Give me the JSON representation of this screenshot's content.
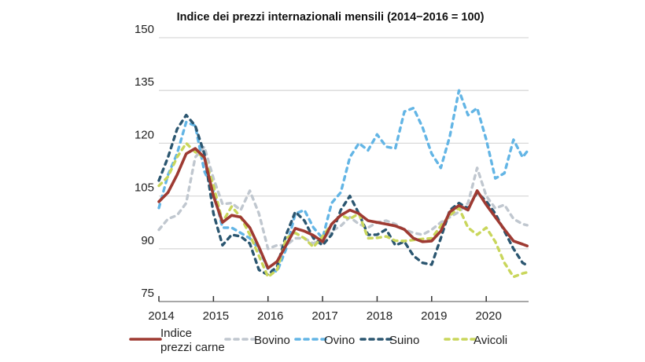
{
  "chart_data": {
    "type": "line",
    "title": "Indice dei prezzi internazionali mensili (2014−2016 = 100)",
    "xlabel": "",
    "ylabel": "",
    "ylim": [
      75,
      150
    ],
    "yticks": [
      75,
      90,
      105,
      120,
      135,
      150
    ],
    "xticks": [
      "2014",
      "2015",
      "2016",
      "2017",
      "2018",
      "2019",
      "2020"
    ],
    "grid": "horizontal",
    "legend_position": "bottom",
    "x": [
      "2014-01",
      "2014-03",
      "2014-05",
      "2014-07",
      "2014-09",
      "2014-11",
      "2015-01",
      "2015-03",
      "2015-05",
      "2015-07",
      "2015-09",
      "2015-11",
      "2016-01",
      "2016-03",
      "2016-05",
      "2016-07",
      "2016-09",
      "2016-11",
      "2017-01",
      "2017-03",
      "2017-05",
      "2017-07",
      "2017-09",
      "2017-11",
      "2018-01",
      "2018-03",
      "2018-05",
      "2018-07",
      "2018-09",
      "2018-11",
      "2019-01",
      "2019-03",
      "2019-05",
      "2019-07",
      "2019-09",
      "2019-11",
      "2020-01",
      "2020-03",
      "2020-05",
      "2020-07",
      "2020-09",
      "2020-10"
    ],
    "series": [
      {
        "name": "Bovino",
        "color": "#c0c7cf",
        "style": "dashed",
        "values": [
          95.4,
          98.5,
          99.5,
          103,
          116,
          119,
          110,
          102.7,
          103,
          101,
          106.5,
          100,
          90,
          91,
          91,
          93,
          93,
          91.5,
          93,
          95,
          96.5,
          99,
          97,
          96,
          97.5,
          98,
          97,
          95.5,
          94.5,
          94,
          95.4,
          97.5,
          99,
          100.5,
          103,
          113,
          105,
          101.5,
          102.5,
          98.5,
          97,
          96.7
        ]
      },
      {
        "name": "Ovino",
        "color": "#63b5e5",
        "style": "dashed",
        "values": [
          101.6,
          111,
          117,
          126,
          125,
          112,
          106.5,
          96,
          96,
          94.5,
          93,
          90,
          84.2,
          83.5,
          90,
          100,
          101,
          96,
          93,
          103,
          106,
          116,
          120,
          118,
          122.5,
          119,
          118.5,
          129,
          130,
          124.5,
          117,
          113,
          122,
          135,
          128,
          130,
          121,
          110,
          111.5,
          121,
          116,
          117.7
        ]
      },
      {
        "name": "Suino",
        "color": "#2b5670",
        "style": "dashed",
        "values": [
          109.4,
          116,
          124,
          128,
          125,
          117,
          100,
          91,
          94,
          93.5,
          91.5,
          84,
          82.6,
          85,
          94,
          100.5,
          98,
          93,
          91,
          94,
          101,
          105,
          100,
          94,
          94,
          95.5,
          91,
          92,
          88,
          86,
          85.5,
          93,
          101,
          103,
          101.5,
          106,
          103.5,
          100,
          95,
          90,
          86,
          85.3
        ]
      },
      {
        "name": "Avicoli",
        "color": "#c9d65b",
        "style": "dashed",
        "values": [
          107.9,
          110.5,
          116,
          120,
          117.5,
          116,
          108,
          97.6,
          102,
          99,
          94,
          88,
          82,
          84,
          93,
          94.5,
          93,
          90.5,
          93.5,
          97,
          99.5,
          98.5,
          100,
          93,
          93.1,
          93.5,
          92.3,
          92.2,
          92.5,
          92.8,
          93,
          96.5,
          99.5,
          101.6,
          96,
          94,
          96,
          92,
          86,
          82,
          83,
          83.3
        ]
      },
      {
        "name": "Indice prezzi carne",
        "color": "#9e3a32",
        "style": "solid",
        "values": [
          103.4,
          106,
          111,
          117,
          118.5,
          116,
          105,
          97.5,
          99.5,
          99,
          96,
          90.5,
          84.5,
          86.4,
          91,
          95.8,
          95,
          93.8,
          92,
          97,
          99.5,
          101,
          100,
          98,
          97.5,
          97,
          96.5,
          95.5,
          93,
          92,
          92.2,
          95,
          100.5,
          102.3,
          101,
          106.5,
          102.5,
          99,
          95.5,
          92.2,
          91.3,
          90.8
        ]
      }
    ],
    "legend": [
      {
        "label_line1": "Indice",
        "label_line2": "prezzi carne",
        "series": "Indice prezzi carne"
      },
      {
        "label": "Bovino"
      },
      {
        "label": "Ovino"
      },
      {
        "label": "Suino"
      },
      {
        "label": "Avicoli"
      }
    ]
  },
  "colors": {
    "grid": "#d9d9d9",
    "axis": "#8c8c8c"
  }
}
